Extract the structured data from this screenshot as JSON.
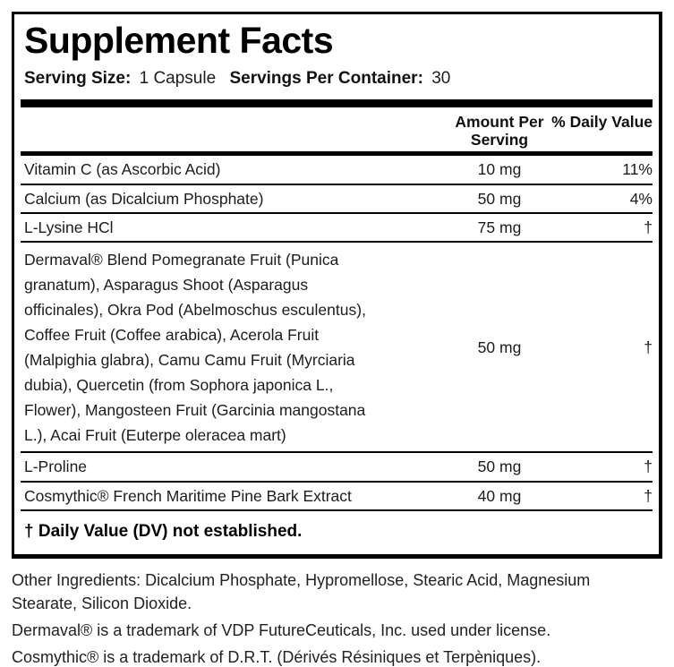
{
  "label": {
    "title": "Supplement Facts",
    "serving_size_label": "Serving Size:",
    "serving_size_value": "1 Capsule",
    "servings_per_container_label": "Servings Per Container:",
    "servings_per_container_value": "30",
    "col_amount_header": "Amount Per Serving",
    "col_dv_header": "% Daily Value",
    "rows": [
      {
        "name": "Vitamin C (as Ascorbic Acid)",
        "amount": "10 mg",
        "dv": "11%"
      },
      {
        "name": "Calcium (as Dicalcium Phosphate)",
        "amount": "50 mg",
        "dv": "4%"
      },
      {
        "name": "L-Lysine HCl",
        "amount": "75 mg",
        "dv": "†"
      },
      {
        "name": "Dermaval® Blend Pomegranate Fruit (Punica\ngranatum), Asparagus Shoot (Asparagus\nofficinales), Okra Pod (Abelmoschus esculentus),\nCoffee Fruit (Coffee arabica), Acerola Fruit\n(Malpighia glabra), Camu Camu Fruit (Myrciaria\ndubia), Quercetin (from Sophora japonica L.,\nFlower), Mangosteen Fruit (Garcinia mangostana\nL.), Acai Fruit (Euterpe oleracea mart)",
        "amount": "50 mg",
        "dv": "†"
      },
      {
        "name": "L-Proline",
        "amount": "50 mg",
        "dv": "†"
      },
      {
        "name": "Cosmythic® French Maritime Pine Bark Extract",
        "amount": "40 mg",
        "dv": "†"
      }
    ],
    "footnote": "† Daily Value (DV) not established."
  },
  "footer": {
    "other_ingredients": "Other Ingredients: Dicalcium Phosphate, Hypromellose, Stearic Acid, Magnesium\nStearate, Silicon Dioxide.",
    "trademark_dermaval": "Dermaval® is a trademark of VDP FutureCeuticals, Inc. used under license.",
    "trademark_cosmythic": "Cosmythic® is a trademark of D.R.T. (Dérivés Résiniques et Terpèniques)."
  }
}
